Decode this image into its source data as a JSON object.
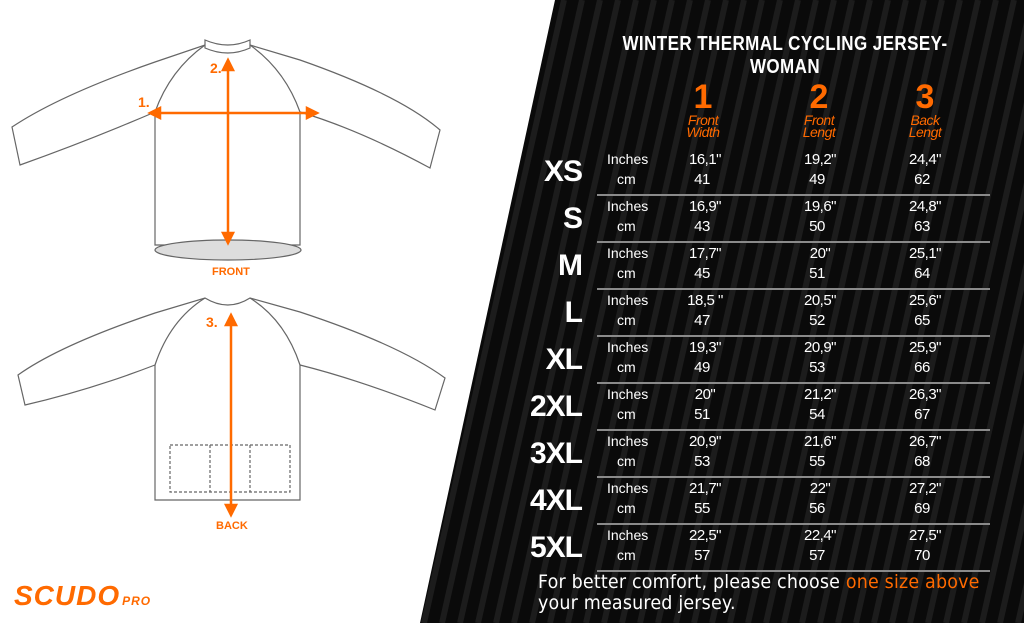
{
  "title": "WINTER THERMAL CYCLING JERSEY-WOMAN",
  "colors": {
    "accent": "#ff6a00",
    "background": "#000000",
    "text": "#ffffff"
  },
  "columns": [
    {
      "number": "1",
      "label_line1": "Front",
      "label_line2": "Width"
    },
    {
      "number": "2",
      "label_line1": "Front",
      "label_line2": "Lengt"
    },
    {
      "number": "3",
      "label_line1": "Back",
      "label_line2": "Lengt"
    }
  ],
  "units": {
    "inches": "Inches",
    "cm": "cm"
  },
  "rows": [
    {
      "size": "XS",
      "inches": [
        "16,1\"",
        "19,2\"",
        "24,4\""
      ],
      "cm": [
        "41",
        "49",
        "62"
      ]
    },
    {
      "size": "S",
      "inches": [
        "16,9\"",
        "19,6\"",
        "24,8\""
      ],
      "cm": [
        "43",
        "50",
        "63"
      ]
    },
    {
      "size": "M",
      "inches": [
        "17,7\"",
        "20\"",
        "25,1\""
      ],
      "cm": [
        "45",
        "51",
        "64"
      ]
    },
    {
      "size": "L",
      "inches": [
        "18,5 \"",
        "20,5\"",
        "25,6\""
      ],
      "cm": [
        "47",
        "52",
        "65"
      ]
    },
    {
      "size": "XL",
      "inches": [
        "19,3\"",
        "20,9\"",
        "25,9\""
      ],
      "cm": [
        "49",
        "53",
        "66"
      ]
    },
    {
      "size": "2XL",
      "inches": [
        "20\"",
        "21,2\"",
        "26,3\""
      ],
      "cm": [
        "51",
        "54",
        "67"
      ]
    },
    {
      "size": "3XL",
      "inches": [
        "20,9\"",
        "21,6\"",
        "26,7\""
      ],
      "cm": [
        "53",
        "55",
        "68"
      ]
    },
    {
      "size": "4XL",
      "inches": [
        "21,7\"",
        "22\"",
        "27,2\""
      ],
      "cm": [
        "55",
        "56",
        "69"
      ]
    },
    {
      "size": "5XL",
      "inches": [
        "22,5\"",
        "22,4\"",
        "27,5\""
      ],
      "cm": [
        "57",
        "57",
        "70"
      ]
    }
  ],
  "note": {
    "part1": "For better comfort, please choose ",
    "highlight": "one size above",
    "part2": "your measured jersey."
  },
  "diagram": {
    "front_label": "FRONT",
    "back_label": "BACK",
    "marker1": "1.",
    "marker2": "2.",
    "marker3": "3."
  },
  "logo": {
    "name": "SCUDO",
    "suffix": "PRO"
  }
}
